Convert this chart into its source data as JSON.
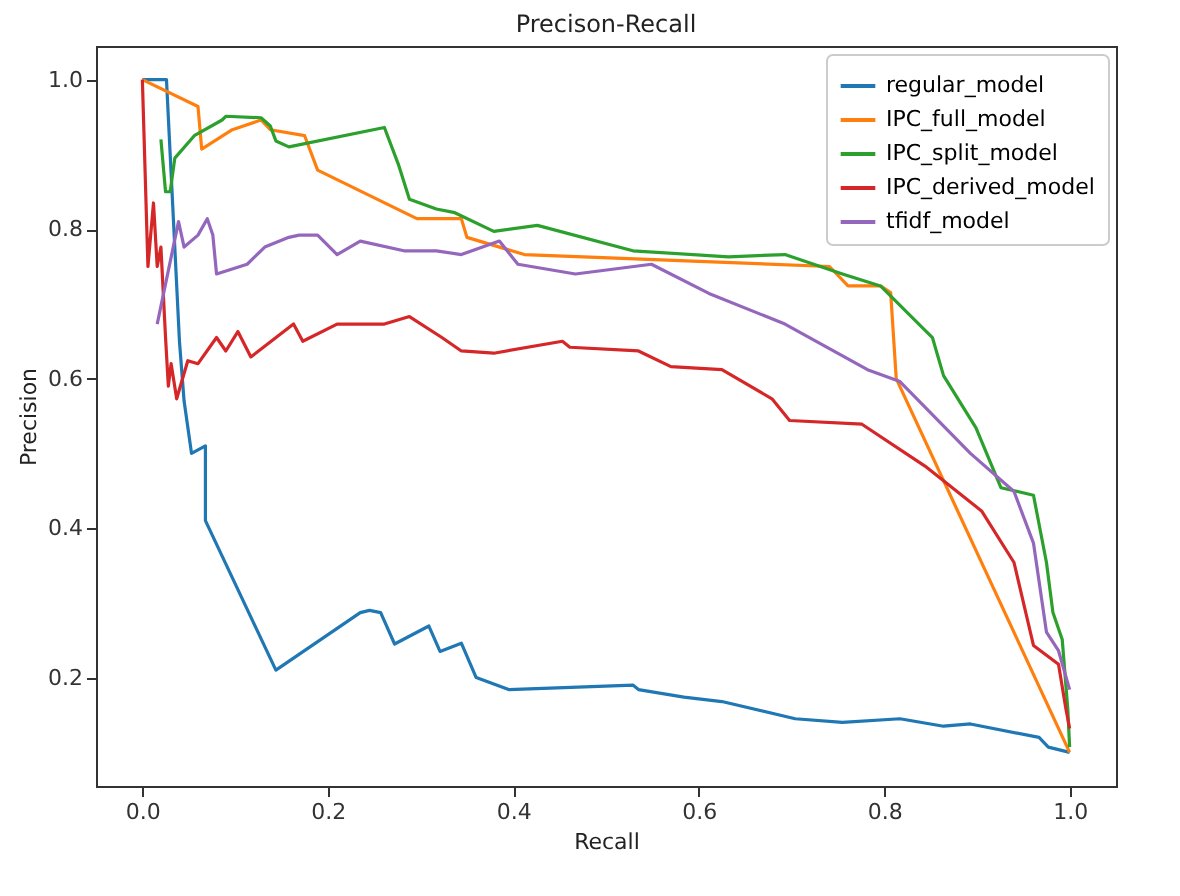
{
  "chart_data": {
    "type": "line",
    "title": "Precison-Recall",
    "xlabel": "Recall",
    "ylabel": "Precision",
    "xlim": [
      -0.05,
      1.05
    ],
    "ylim": [
      0.055,
      1.045
    ],
    "xticks": [
      {
        "value": 0,
        "label": "0.0"
      },
      0.2,
      0.4,
      0.6,
      0.8,
      {
        "value": 1,
        "label": "1.0"
      }
    ],
    "yticks": [
      0.2,
      0.4,
      0.6,
      0.8,
      {
        "value": 1,
        "label": "1.0"
      }
    ],
    "grid": false,
    "legend": "top right",
    "marker": "none",
    "line_style": "solid",
    "series": [
      {
        "name": "regular_model",
        "color": "#1f77b4",
        "x": [
          0,
          0.026,
          0.03,
          0.04,
          0.045,
          0.053,
          0.068,
          0.068,
          0.144,
          0.235,
          0.245,
          0.257,
          0.272,
          0.309,
          0.321,
          0.344,
          0.36,
          0.395,
          0.529,
          0.535,
          0.584,
          0.625,
          0.704,
          0.755,
          0.817,
          0.864,
          0.893,
          0.967,
          0.977,
          1.0
        ],
        "values": [
          1.0,
          1.0,
          0.9,
          0.65,
          0.57,
          0.5,
          0.51,
          0.41,
          0.21,
          0.287,
          0.29,
          0.287,
          0.245,
          0.269,
          0.235,
          0.246,
          0.2,
          0.184,
          0.19,
          0.184,
          0.174,
          0.168,
          0.145,
          0.14,
          0.145,
          0.135,
          0.138,
          0.12,
          0.107,
          0.1
        ]
      },
      {
        "name": "IPC_full_model",
        "color": "#ff7f0e",
        "x": [
          0,
          0.06,
          0.064,
          0.097,
          0.128,
          0.138,
          0.175,
          0.189,
          0.296,
          0.344,
          0.35,
          0.412,
          0.741,
          0.761,
          0.796,
          0.807,
          0.813,
          1.0
        ],
        "values": [
          1.0,
          0.964,
          0.907,
          0.933,
          0.946,
          0.933,
          0.925,
          0.879,
          0.814,
          0.814,
          0.789,
          0.766,
          0.75,
          0.724,
          0.724,
          0.715,
          0.6,
          0.1
        ]
      },
      {
        "name": "IPC_split_model",
        "color": "#2ca02c",
        "x": [
          0.02,
          0.025,
          0.03,
          0.035,
          0.056,
          0.086,
          0.09,
          0.128,
          0.138,
          0.144,
          0.158,
          0.261,
          0.276,
          0.288,
          0.317,
          0.337,
          0.379,
          0.426,
          0.529,
          0.632,
          0.693,
          0.755,
          0.796,
          0.852,
          0.864,
          0.899,
          0.926,
          0.961,
          0.975,
          0.982,
          0.992,
          0.998,
          1.0
        ],
        "values": [
          0.92,
          0.85,
          0.85,
          0.895,
          0.925,
          0.946,
          0.951,
          0.949,
          0.938,
          0.918,
          0.91,
          0.936,
          0.887,
          0.84,
          0.827,
          0.822,
          0.797,
          0.805,
          0.771,
          0.763,
          0.766,
          0.74,
          0.724,
          0.655,
          0.604,
          0.534,
          0.454,
          0.444,
          0.354,
          0.287,
          0.251,
          0.158,
          0.107
        ]
      },
      {
        "name": "IPC_derived_model",
        "color": "#d62728",
        "x": [
          0,
          0.006,
          0.012,
          0.016,
          0.02,
          0.025,
          0.028,
          0.031,
          0.037,
          0.049,
          0.06,
          0.08,
          0.09,
          0.103,
          0.117,
          0.163,
          0.173,
          0.21,
          0.261,
          0.288,
          0.323,
          0.344,
          0.379,
          0.453,
          0.461,
          0.535,
          0.57,
          0.625,
          0.679,
          0.698,
          0.776,
          0.844,
          0.905,
          0.94,
          0.961,
          0.988,
          0.996,
          1.0
        ],
        "values": [
          1.0,
          0.75,
          0.835,
          0.75,
          0.776,
          0.655,
          0.59,
          0.62,
          0.573,
          0.624,
          0.62,
          0.655,
          0.637,
          0.663,
          0.629,
          0.673,
          0.65,
          0.673,
          0.673,
          0.683,
          0.655,
          0.637,
          0.634,
          0.65,
          0.642,
          0.637,
          0.616,
          0.612,
          0.573,
          0.544,
          0.539,
          0.483,
          0.423,
          0.354,
          0.243,
          0.218,
          0.158,
          0.132
        ]
      },
      {
        "name": "tfidf_model",
        "color": "#9467bd",
        "x": [
          0.016,
          0.039,
          0.045,
          0.06,
          0.07,
          0.076,
          0.08,
          0.113,
          0.132,
          0.158,
          0.169,
          0.189,
          0.21,
          0.235,
          0.282,
          0.317,
          0.344,
          0.385,
          0.405,
          0.467,
          0.549,
          0.611,
          0.693,
          0.782,
          0.817,
          0.893,
          0.94,
          0.961,
          0.975,
          0.988,
          1.0
        ],
        "values": [
          0.673,
          0.81,
          0.776,
          0.792,
          0.814,
          0.792,
          0.74,
          0.753,
          0.776,
          0.789,
          0.792,
          0.792,
          0.766,
          0.784,
          0.771,
          0.771,
          0.766,
          0.784,
          0.753,
          0.74,
          0.753,
          0.714,
          0.673,
          0.612,
          0.596,
          0.5,
          0.449,
          0.38,
          0.261,
          0.236,
          0.184
        ]
      }
    ]
  }
}
